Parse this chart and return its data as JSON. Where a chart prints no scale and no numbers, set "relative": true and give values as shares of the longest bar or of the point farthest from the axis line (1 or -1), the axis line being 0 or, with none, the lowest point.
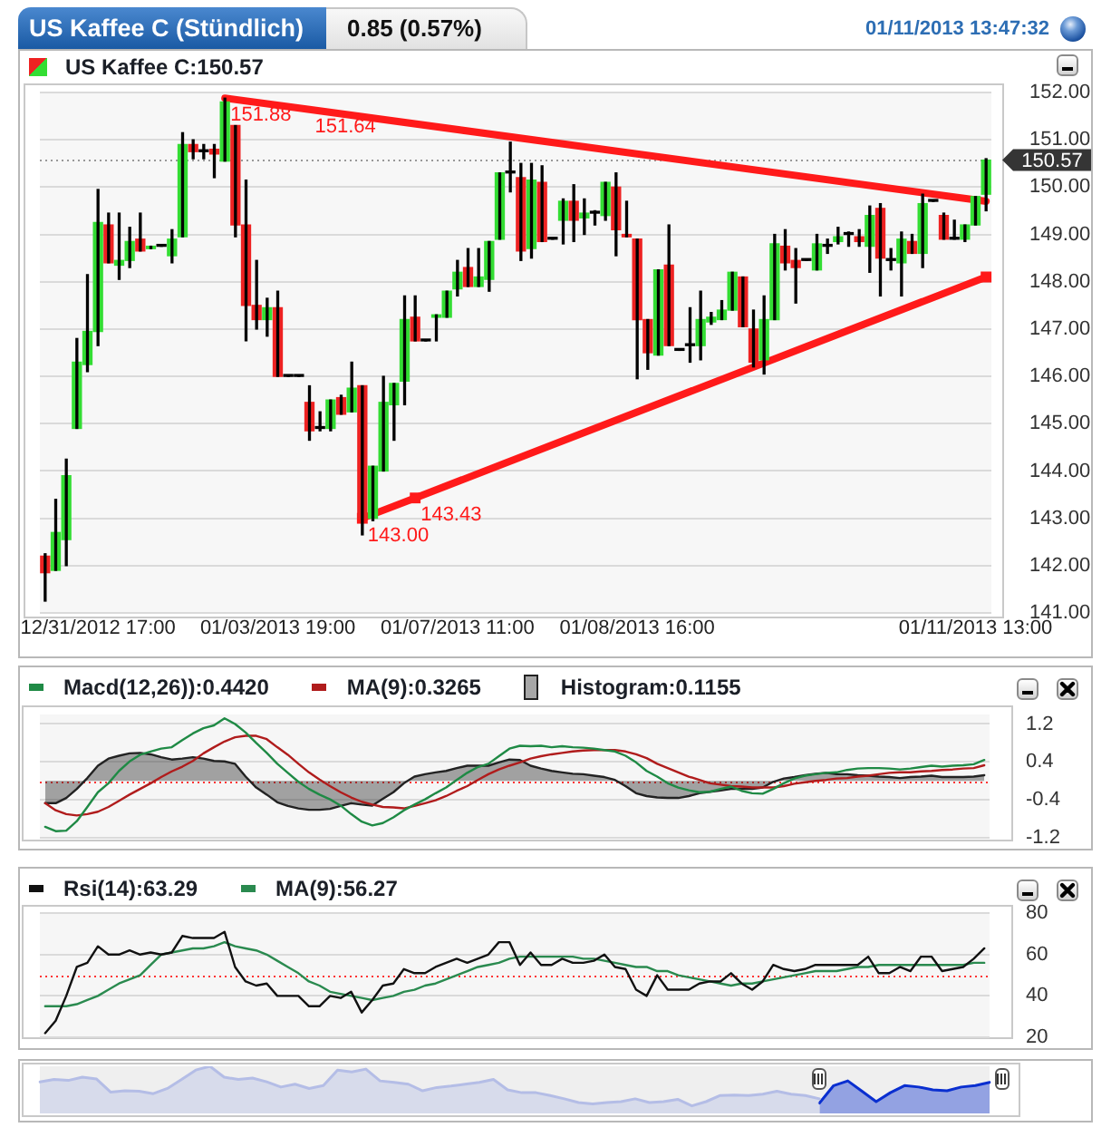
{
  "chart_data": [
    {
      "type": "candlestick",
      "title": "US Kaffee C (Stündlich)",
      "subtitle": "0.85 (0.57%)",
      "annotations": [
        "01/11/2013 13:47:32"
      ],
      "categories": [
        null,
        null,
        null,
        null,
        null,
        "12/31/2012 17:00",
        null,
        null,
        null,
        null,
        null,
        null,
        null,
        null,
        null,
        null,
        null,
        null,
        null,
        null,
        null,
        null,
        "01/03/2013 19:00",
        null,
        null,
        null,
        null,
        null,
        null,
        null,
        null,
        null,
        null,
        null,
        null,
        null,
        null,
        null,
        null,
        "01/07/2013 11:00",
        null,
        null,
        null,
        null,
        null,
        null,
        null,
        null,
        null,
        null,
        null,
        null,
        null,
        null,
        null,
        null,
        "01/08/2013 16:00",
        null,
        null,
        null,
        null,
        null,
        null,
        null,
        null,
        null,
        null,
        null,
        null,
        null,
        null,
        null,
        null,
        null,
        null,
        null,
        null,
        null,
        null,
        null,
        null,
        null,
        null,
        null,
        null,
        null,
        null,
        null,
        "01/11/2013 13:00",
        null
      ],
      "series": [
        {
          "name": "US Kaffee C:150.57",
          "ohlc": [
            [
              142.2,
              142.25,
              141.25,
              141.85
            ],
            [
              141.9,
              143.4,
              141.9,
              142.7
            ],
            [
              142.55,
              144.25,
              142.0,
              143.9
            ],
            [
              144.9,
              146.8,
              144.9,
              146.3
            ],
            [
              146.25,
              148.15,
              146.1,
              146.95
            ],
            [
              146.95,
              149.95,
              146.65,
              149.25
            ],
            [
              149.2,
              149.45,
              148.4,
              148.4
            ],
            [
              148.35,
              149.45,
              148.05,
              148.45
            ],
            [
              148.45,
              149.15,
              148.3,
              148.85
            ],
            [
              148.9,
              149.45,
              148.65,
              148.65
            ],
            [
              148.7,
              148.75,
              148.7,
              148.75
            ],
            [
              148.75,
              148.75,
              148.75,
              148.75
            ],
            [
              148.55,
              149.1,
              148.4,
              148.9
            ],
            [
              148.95,
              151.15,
              148.95,
              150.9
            ],
            [
              150.9,
              151.0,
              150.6,
              150.75
            ],
            [
              150.75,
              150.9,
              150.6,
              150.75
            ],
            [
              150.8,
              150.9,
              150.2,
              150.7
            ],
            [
              150.55,
              151.88,
              150.55,
              151.8
            ],
            [
              151.3,
              151.3,
              148.95,
              149.2
            ],
            [
              149.2,
              150.15,
              146.75,
              147.5
            ],
            [
              147.5,
              148.45,
              147.0,
              147.2
            ],
            [
              147.2,
              147.65,
              146.85,
              147.45
            ],
            [
              147.45,
              147.8,
              146.0,
              146.0
            ],
            [
              146.0,
              146.0,
              146.0,
              146.0
            ],
            [
              146.0,
              146.0,
              146.0,
              146.0
            ],
            [
              145.45,
              145.8,
              144.65,
              144.85
            ],
            [
              144.9,
              145.25,
              144.85,
              144.9
            ],
            [
              144.9,
              145.5,
              144.85,
              145.5
            ],
            [
              145.55,
              145.6,
              145.2,
              145.2
            ],
            [
              145.25,
              146.3,
              145.25,
              145.75
            ],
            [
              145.8,
              145.8,
              142.65,
              143.0
            ],
            [
              143.0,
              144.1,
              142.95,
              144.1
            ],
            [
              144.0,
              146.0,
              144.0,
              145.45
            ],
            [
              145.4,
              145.85,
              144.65,
              145.85
            ],
            [
              145.9,
              147.7,
              145.4,
              147.2
            ],
            [
              147.25,
              147.7,
              146.75,
              146.75
            ],
            [
              146.75,
              146.75,
              146.75,
              146.75
            ],
            [
              147.25,
              147.3,
              146.75,
              147.3
            ],
            [
              147.25,
              147.8,
              147.25,
              147.8
            ],
            [
              147.85,
              148.45,
              147.7,
              148.2
            ],
            [
              148.3,
              148.7,
              147.9,
              147.9
            ],
            [
              147.9,
              148.7,
              147.9,
              148.1
            ],
            [
              148.05,
              148.85,
              147.8,
              148.85
            ],
            [
              148.9,
              150.3,
              148.9,
              150.3
            ],
            [
              150.3,
              150.95,
              149.9,
              150.3
            ],
            [
              150.2,
              150.5,
              148.45,
              148.65
            ],
            [
              148.7,
              150.5,
              148.5,
              150.15
            ],
            [
              150.1,
              150.45,
              148.85,
              148.85
            ],
            [
              148.9,
              148.9,
              148.9,
              148.9
            ],
            [
              149.3,
              149.75,
              148.8,
              149.7
            ],
            [
              149.7,
              150.05,
              148.85,
              149.3
            ],
            [
              149.35,
              149.75,
              149.0,
              149.45
            ],
            [
              149.45,
              149.5,
              149.2,
              149.45
            ],
            [
              149.4,
              150.1,
              149.3,
              150.1
            ],
            [
              150.0,
              150.3,
              148.55,
              149.1
            ],
            [
              149.0,
              149.7,
              148.95,
              148.95
            ],
            [
              148.9,
              148.9,
              145.95,
              147.2
            ],
            [
              147.2,
              147.2,
              146.15,
              146.5
            ],
            [
              146.45,
              148.25,
              146.45,
              148.25
            ],
            [
              148.35,
              149.2,
              146.65,
              146.65
            ],
            [
              146.55,
              146.55,
              146.55,
              146.55
            ],
            [
              146.65,
              147.45,
              146.3,
              146.65
            ],
            [
              146.65,
              147.8,
              146.35,
              147.2
            ],
            [
              147.15,
              147.35,
              147.1,
              147.25
            ],
            [
              147.2,
              147.6,
              147.2,
              147.4
            ],
            [
              147.4,
              148.2,
              147.4,
              148.2
            ],
            [
              148.1,
              148.1,
              147.05,
              147.05
            ],
            [
              147.0,
              147.4,
              146.2,
              146.3
            ],
            [
              146.35,
              147.7,
              146.05,
              147.2
            ],
            [
              147.2,
              149.0,
              147.2,
              148.8
            ],
            [
              148.75,
              149.1,
              148.25,
              148.4
            ],
            [
              148.45,
              148.7,
              147.55,
              148.3
            ],
            [
              148.45,
              148.45,
              148.45,
              148.45
            ],
            [
              148.25,
              149.0,
              148.25,
              148.8
            ],
            [
              148.75,
              148.9,
              148.6,
              148.75
            ],
            [
              148.85,
              149.15,
              148.8,
              148.95
            ],
            [
              149.0,
              149.05,
              148.75,
              149.0
            ],
            [
              148.95,
              149.1,
              148.75,
              148.85
            ],
            [
              148.75,
              149.6,
              148.2,
              149.4
            ],
            [
              149.55,
              149.65,
              147.7,
              148.5
            ],
            [
              148.45,
              148.7,
              148.25,
              148.45
            ],
            [
              148.4,
              149.05,
              147.7,
              148.9
            ],
            [
              148.85,
              149.0,
              148.6,
              148.6
            ],
            [
              148.6,
              149.85,
              148.3,
              149.65
            ],
            [
              149.7,
              149.7,
              149.7,
              149.7
            ],
            [
              149.4,
              149.45,
              148.9,
              148.9
            ],
            [
              148.9,
              149.3,
              148.9,
              148.9
            ],
            [
              148.9,
              149.2,
              148.85,
              149.2
            ],
            [
              149.2,
              149.8,
              149.2,
              149.8
            ],
            [
              149.85,
              150.6,
              149.5,
              150.57
            ]
          ],
          "colors": [
            "#ee2222",
            "#33dd33",
            "#33dd33",
            "#33dd33",
            "#33dd33",
            "#33dd33",
            "#ee2222",
            "#33dd33",
            "#33dd33",
            "#ee2222",
            "#33dd33",
            "#000000",
            "#33dd33",
            "#33dd33",
            "#ee2222",
            "#000000",
            "#ee2222",
            "#33dd33",
            "#ee2222",
            "#ee2222",
            "#ee2222",
            "#33dd33",
            "#ee2222",
            "#000000",
            "#000000",
            "#ee2222",
            "#000000",
            "#33dd33",
            "#ee2222",
            "#33dd33",
            "#ee2222",
            "#33dd33",
            "#33dd33",
            "#33dd33",
            "#33dd33",
            "#ee2222",
            "#000000",
            "#33dd33",
            "#33dd33",
            "#33dd33",
            "#ee2222",
            "#33dd33",
            "#33dd33",
            "#33dd33",
            "#000000",
            "#ee2222",
            "#33dd33",
            "#ee2222",
            "#000000",
            "#33dd33",
            "#ee2222",
            "#33dd33",
            "#000000",
            "#33dd33",
            "#ee2222",
            "#ee2222",
            "#ee2222",
            "#ee2222",
            "#33dd33",
            "#ee2222",
            "#000000",
            "#000000",
            "#33dd33",
            "#33dd33",
            "#33dd33",
            "#33dd33",
            "#ee2222",
            "#ee2222",
            "#33dd33",
            "#33dd33",
            "#ee2222",
            "#ee2222",
            "#000000",
            "#33dd33",
            "#000000",
            "#33dd33",
            "#000000",
            "#ee2222",
            "#33dd33",
            "#ee2222",
            "#000000",
            "#33dd33",
            "#ee2222",
            "#33dd33",
            "#000000",
            "#ee2222",
            "#000000",
            "#33dd33",
            "#33dd33",
            "#33dd33"
          ]
        },
        {
          "type": "line",
          "color": "#ff1a1a",
          "values": [
            null,
            null,
            null,
            null,
            null,
            null,
            null,
            null,
            null,
            null,
            null,
            null,
            null,
            null,
            null,
            null,
            null,
            151.88,
            null,
            null,
            null,
            null,
            null,
            null,
            null,
            151.64,
            null,
            null,
            null,
            null,
            null,
            null,
            null,
            null,
            null,
            null,
            null,
            null,
            null,
            null,
            null,
            null,
            null,
            null,
            null,
            null,
            null,
            null,
            null,
            null,
            null,
            null,
            null,
            null,
            null,
            null,
            null,
            null,
            null,
            null,
            null,
            null,
            null,
            null,
            null,
            null,
            null,
            null,
            null,
            null,
            null,
            null,
            null,
            null,
            null,
            null,
            null,
            null,
            null,
            null,
            null,
            null,
            null,
            null,
            null,
            null,
            null,
            null,
            null,
            149.7
          ],
          "value_labels": [
            null,
            null,
            null,
            null,
            null,
            null,
            null,
            null,
            null,
            null,
            null,
            null,
            null,
            null,
            null,
            null,
            null,
            "151.88",
            null,
            null,
            null,
            null,
            null,
            null,
            null,
            "151.64",
            null,
            null,
            null,
            null,
            null,
            null,
            null,
            null,
            null,
            null,
            null,
            null,
            null,
            null,
            null,
            null,
            null,
            null,
            null,
            null,
            null,
            null,
            null,
            null,
            null,
            null,
            null,
            null,
            null,
            null,
            null,
            null,
            null,
            null,
            null,
            null,
            null,
            null,
            null,
            null,
            null,
            null,
            null,
            null,
            null,
            null,
            null,
            null,
            null,
            null,
            null,
            null,
            null,
            null,
            null,
            null,
            null,
            null,
            null,
            null,
            null,
            null,
            null,
            null
          ]
        },
        {
          "type": "line",
          "color": "#ff1a1a",
          "marker": "square",
          "values": [
            null,
            null,
            null,
            null,
            null,
            null,
            null,
            null,
            null,
            null,
            null,
            null,
            null,
            null,
            null,
            null,
            null,
            null,
            null,
            null,
            null,
            null,
            null,
            null,
            null,
            null,
            null,
            null,
            null,
            null,
            143.0,
            null,
            null,
            null,
            null,
            143.43,
            null,
            null,
            null,
            null,
            null,
            null,
            null,
            null,
            null,
            null,
            null,
            null,
            null,
            null,
            null,
            null,
            null,
            null,
            null,
            null,
            null,
            null,
            null,
            null,
            null,
            null,
            null,
            null,
            null,
            null,
            null,
            null,
            null,
            null,
            null,
            null,
            null,
            null,
            null,
            null,
            null,
            null,
            null,
            null,
            null,
            null,
            null,
            null,
            null,
            null,
            null,
            null,
            null,
            148.1
          ],
          "value_labels": [
            null,
            null,
            null,
            null,
            null,
            null,
            null,
            null,
            null,
            null,
            null,
            null,
            null,
            null,
            null,
            null,
            null,
            null,
            null,
            null,
            null,
            null,
            null,
            null,
            null,
            null,
            null,
            null,
            null,
            null,
            "143.00",
            null,
            null,
            null,
            null,
            "143.43",
            null,
            null,
            null,
            null,
            null,
            null,
            null,
            null,
            null,
            null,
            null,
            null,
            null,
            null,
            null,
            null,
            null,
            null,
            null,
            null,
            null,
            null,
            null,
            null,
            null,
            null,
            null,
            null,
            null,
            null,
            null,
            null,
            null,
            null,
            null,
            null,
            null,
            null,
            null,
            null,
            null,
            null,
            null,
            null,
            null,
            null,
            null,
            null,
            null,
            null,
            null,
            null,
            null,
            null
          ]
        }
      ],
      "ylim": [
        141,
        152
      ],
      "yticks": [
        {
          "value": 141,
          "label": "141.00"
        },
        {
          "value": 142,
          "label": "142.00"
        },
        {
          "value": 143,
          "label": "143.00"
        },
        {
          "value": 144,
          "label": "144.00"
        },
        {
          "value": 145,
          "label": "145.00"
        },
        {
          "value": 146,
          "label": "146.00"
        },
        {
          "value": 147,
          "label": "147.00"
        },
        {
          "value": 148,
          "label": "148.00"
        },
        {
          "value": 149,
          "label": "149.00"
        },
        {
          "value": 150,
          "label": "150.00"
        },
        {
          "value": 151,
          "label": "151.00"
        },
        {
          "value": 152,
          "label": "152.00"
        }
      ],
      "ref_lines": [
        {
          "axis": "y",
          "value": 150.57,
          "label": "150.57",
          "color": "#999999",
          "line_style": "dotted"
        }
      ],
      "grid": "y",
      "legend": "top left"
    },
    {
      "type": "line",
      "categories": [
        null,
        null,
        null,
        null,
        null,
        null,
        null,
        null,
        null,
        null,
        null,
        null,
        null,
        null,
        null,
        null,
        null,
        null,
        null,
        null,
        null,
        null,
        null,
        null,
        null,
        null,
        null,
        null,
        null,
        null,
        null,
        null,
        null,
        null,
        null,
        null,
        null,
        null,
        null,
        null,
        null,
        null,
        null,
        null,
        null,
        null,
        null,
        null,
        null,
        null,
        null,
        null,
        null,
        null,
        null,
        null,
        null,
        null,
        null,
        null,
        null,
        null,
        null,
        null,
        null,
        null,
        null,
        null,
        null,
        null,
        null,
        null,
        null,
        null,
        null,
        null,
        null,
        null,
        null,
        null,
        null,
        null,
        null,
        null,
        null,
        null,
        null,
        null,
        null,
        null
      ],
      "series": [
        {
          "name": "Macd(12,26)):0.4420",
          "color": "#1f8a45",
          "values": [
            -0.97,
            -1.06,
            -1.05,
            -0.85,
            -0.55,
            -0.24,
            -0.05,
            0.21,
            0.41,
            0.55,
            0.62,
            0.68,
            0.71,
            0.86,
            1.0,
            1.11,
            1.17,
            1.32,
            1.2,
            1.02,
            0.8,
            0.59,
            0.36,
            0.17,
            -0.02,
            -0.17,
            -0.29,
            -0.39,
            -0.52,
            -0.7,
            -0.86,
            -0.94,
            -0.89,
            -0.77,
            -0.62,
            -0.5,
            -0.39,
            -0.26,
            -0.14,
            0.02,
            0.17,
            0.29,
            0.36,
            0.52,
            0.68,
            0.74,
            0.73,
            0.74,
            0.71,
            0.73,
            0.71,
            0.7,
            0.68,
            0.65,
            0.62,
            0.53,
            0.39,
            0.21,
            0.09,
            -0.05,
            -0.14,
            -0.2,
            -0.24,
            -0.23,
            -0.17,
            -0.12,
            -0.21,
            -0.26,
            -0.27,
            -0.17,
            -0.05,
            0.05,
            0.11,
            0.14,
            0.17,
            0.18,
            0.23,
            0.26,
            0.27,
            0.27,
            0.26,
            0.24,
            0.26,
            0.29,
            0.32,
            0.3,
            0.32,
            0.33,
            0.35,
            0.44
          ]
        },
        {
          "name": "MA(9):0.3265",
          "color": "#b01c1c",
          "values": [
            -0.47,
            -0.62,
            -0.7,
            -0.73,
            -0.7,
            -0.65,
            -0.55,
            -0.42,
            -0.29,
            -0.17,
            -0.05,
            0.08,
            0.2,
            0.3,
            0.42,
            0.58,
            0.71,
            0.83,
            0.92,
            0.95,
            0.95,
            0.88,
            0.71,
            0.55,
            0.36,
            0.18,
            0.03,
            -0.11,
            -0.24,
            -0.35,
            -0.44,
            -0.5,
            -0.55,
            -0.56,
            -0.58,
            -0.53,
            -0.47,
            -0.41,
            -0.32,
            -0.21,
            -0.11,
            0.02,
            0.14,
            0.24,
            0.32,
            0.39,
            0.47,
            0.52,
            0.56,
            0.59,
            0.62,
            0.64,
            0.65,
            0.65,
            0.65,
            0.62,
            0.56,
            0.48,
            0.36,
            0.27,
            0.18,
            0.09,
            0.02,
            -0.05,
            -0.08,
            -0.11,
            -0.12,
            -0.14,
            -0.14,
            -0.14,
            -0.11,
            -0.06,
            -0.03,
            0.0,
            0.02,
            0.05,
            0.06,
            0.09,
            0.11,
            0.14,
            0.17,
            0.18,
            0.18,
            0.2,
            0.21,
            0.23,
            0.24,
            0.26,
            0.27,
            0.33
          ]
        },
        {
          "type": "area",
          "name": "Histogram:0.1155",
          "color": "#222222",
          "values": [
            -0.47,
            -0.47,
            -0.36,
            -0.17,
            0.06,
            0.32,
            0.47,
            0.53,
            0.58,
            0.59,
            0.56,
            0.5,
            0.45,
            0.47,
            0.5,
            0.47,
            0.42,
            0.41,
            0.36,
            0.09,
            -0.14,
            -0.29,
            -0.45,
            -0.53,
            -0.58,
            -0.61,
            -0.61,
            -0.59,
            -0.53,
            -0.47,
            -0.5,
            -0.52,
            -0.38,
            -0.24,
            -0.05,
            0.09,
            0.14,
            0.18,
            0.21,
            0.27,
            0.32,
            0.32,
            0.32,
            0.39,
            0.45,
            0.44,
            0.32,
            0.26,
            0.21,
            0.18,
            0.15,
            0.14,
            0.11,
            0.08,
            0.02,
            -0.11,
            -0.26,
            -0.32,
            -0.35,
            -0.36,
            -0.36,
            -0.32,
            -0.26,
            -0.23,
            -0.2,
            -0.17,
            -0.17,
            -0.17,
            -0.14,
            -0.02,
            0.05,
            0.08,
            0.12,
            0.15,
            0.17,
            0.14,
            0.14,
            0.12,
            0.11,
            0.09,
            0.08,
            0.06,
            0.08,
            0.09,
            0.11,
            0.08,
            0.08,
            0.08,
            0.09,
            0.12
          ]
        }
      ],
      "ylim": [
        -1.2,
        1.4
      ],
      "yticks": [
        -1.2,
        -0.4,
        0.4,
        1.2
      ],
      "ref_lines": [
        {
          "axis": "y",
          "value": 0,
          "color": "#ff3333",
          "line_style": "dotted"
        }
      ],
      "grid": "y",
      "legend": "top left",
      "tick_labels": "y"
    },
    {
      "type": "line",
      "categories": [
        null,
        null,
        null,
        null,
        null,
        null,
        null,
        null,
        null,
        null,
        null,
        null,
        null,
        null,
        null,
        null,
        null,
        null,
        null,
        null,
        null,
        null,
        null,
        null,
        null,
        null,
        null,
        null,
        null,
        null,
        null,
        null,
        null,
        null,
        null,
        null,
        null,
        null,
        null,
        null,
        null,
        null,
        null,
        null,
        null,
        null,
        null,
        null,
        null,
        null,
        null,
        null,
        null,
        null,
        null,
        null,
        null,
        null,
        null,
        null,
        null,
        null,
        null,
        null,
        null,
        null,
        null,
        null,
        null,
        null,
        null,
        null,
        null,
        null,
        null,
        null,
        null,
        null,
        null,
        null,
        null,
        null,
        null,
        null,
        null,
        null,
        null,
        null,
        null,
        null
      ],
      "series": [
        {
          "name": "Rsi(14):63.29",
          "color": "#111111",
          "values": [
            22,
            28,
            40,
            54,
            56,
            64,
            60,
            60,
            62,
            60,
            61,
            60,
            61,
            69,
            68,
            68,
            68,
            71,
            54,
            47,
            45,
            46,
            40,
            40,
            40,
            35,
            35,
            40,
            39,
            42,
            32,
            38,
            45,
            46,
            53,
            51,
            51,
            54,
            56,
            58,
            56,
            58,
            60,
            66,
            66,
            55,
            61,
            55,
            55,
            58,
            56,
            56,
            57,
            60,
            54,
            53,
            43,
            40,
            50,
            43,
            43,
            43,
            46,
            47,
            47,
            51,
            46,
            43,
            47,
            55,
            53,
            52,
            53,
            55,
            55,
            55,
            55,
            55,
            59,
            51,
            51,
            54,
            52,
            59,
            59,
            52,
            53,
            54,
            58,
            63
          ]
        },
        {
          "name": "MA(9):56.27",
          "color": "#2a8a4f",
          "values": [
            35,
            35,
            35,
            36,
            38,
            40,
            43,
            46,
            48,
            50,
            55,
            60,
            61,
            62,
            63,
            63,
            64,
            66,
            64,
            63,
            62,
            60,
            57,
            54,
            51,
            47,
            45,
            42,
            41,
            40,
            39,
            38,
            39,
            40,
            42,
            43,
            45,
            46,
            48,
            50,
            52,
            54,
            55,
            56,
            58,
            59,
            59,
            59,
            59,
            59,
            59,
            58,
            58,
            57,
            56,
            55,
            54,
            54,
            52,
            52,
            50,
            49,
            48,
            47,
            46,
            45,
            46,
            46,
            47,
            48,
            49,
            50,
            51,
            52,
            52,
            52,
            53,
            54,
            54,
            55,
            55,
            55,
            55,
            55,
            55,
            55,
            55,
            55,
            56,
            56
          ]
        }
      ],
      "ylim": [
        20,
        80
      ],
      "yticks": [
        20,
        40,
        60,
        80
      ],
      "ref_lines": [
        {
          "axis": "y",
          "value": 50,
          "color": "#ff3333",
          "line_style": "dotted"
        }
      ],
      "grid": "y",
      "legend": "top left",
      "tick_labels": "y"
    },
    {
      "type": "area",
      "relative": true,
      "tick_labels": false,
      "categories": [
        null,
        null,
        null,
        null,
        null,
        null,
        null,
        null,
        null,
        null,
        null,
        null,
        null,
        null,
        null,
        null,
        null,
        null,
        null,
        null,
        null,
        null,
        null,
        null,
        null,
        null,
        null,
        null,
        null,
        null,
        null,
        null,
        null,
        null,
        null,
        null,
        null,
        null,
        null,
        null,
        null,
        null,
        null,
        null,
        null,
        null,
        null,
        null,
        null,
        null,
        null,
        null,
        null,
        null,
        null,
        null,
        null,
        null,
        null,
        null,
        null,
        null,
        null,
        null,
        null,
        null,
        null,
        null
      ],
      "series": [
        {
          "color": "#b4bde6",
          "values": [
            0.67,
            0.72,
            0.7,
            0.77,
            0.73,
            0.45,
            0.48,
            0.47,
            0.42,
            0.53,
            0.72,
            0.92,
            1,
            0.77,
            0.72,
            0.75,
            0.67,
            0.56,
            0.62,
            0.53,
            0.59,
            0.92,
            0.88,
            0.94,
            0.69,
            0.66,
            0.62,
            0.48,
            0.55,
            0.58,
            0.62,
            0.66,
            0.72,
            0.5,
            0.44,
            0.44,
            0.38,
            0.31,
            0.23,
            0.2,
            0.23,
            0.25,
            0.31,
            0.23,
            0.25,
            0.3,
            0.16,
            0.25,
            0.38,
            0.39,
            0.38,
            0.41,
            0.47,
            0.41,
            0.38,
            0.31,
            null,
            null,
            null,
            null,
            null,
            null,
            null,
            null,
            null,
            null,
            null,
            null
          ]
        },
        {
          "color": "#0a2fd0",
          "values": [
            null,
            null,
            null,
            null,
            null,
            null,
            null,
            null,
            null,
            null,
            null,
            null,
            null,
            null,
            null,
            null,
            null,
            null,
            null,
            null,
            null,
            null,
            null,
            null,
            null,
            null,
            null,
            null,
            null,
            null,
            null,
            null,
            null,
            null,
            null,
            null,
            null,
            null,
            null,
            null,
            null,
            null,
            null,
            null,
            null,
            null,
            null,
            null,
            null,
            null,
            null,
            null,
            null,
            null,
            null,
            0.22,
            0.59,
            0.69,
            0.47,
            0.25,
            0.44,
            0.59,
            0.56,
            0.5,
            0.48,
            0.56,
            0.59,
            0.66
          ]
        }
      ]
    }
  ]
}
